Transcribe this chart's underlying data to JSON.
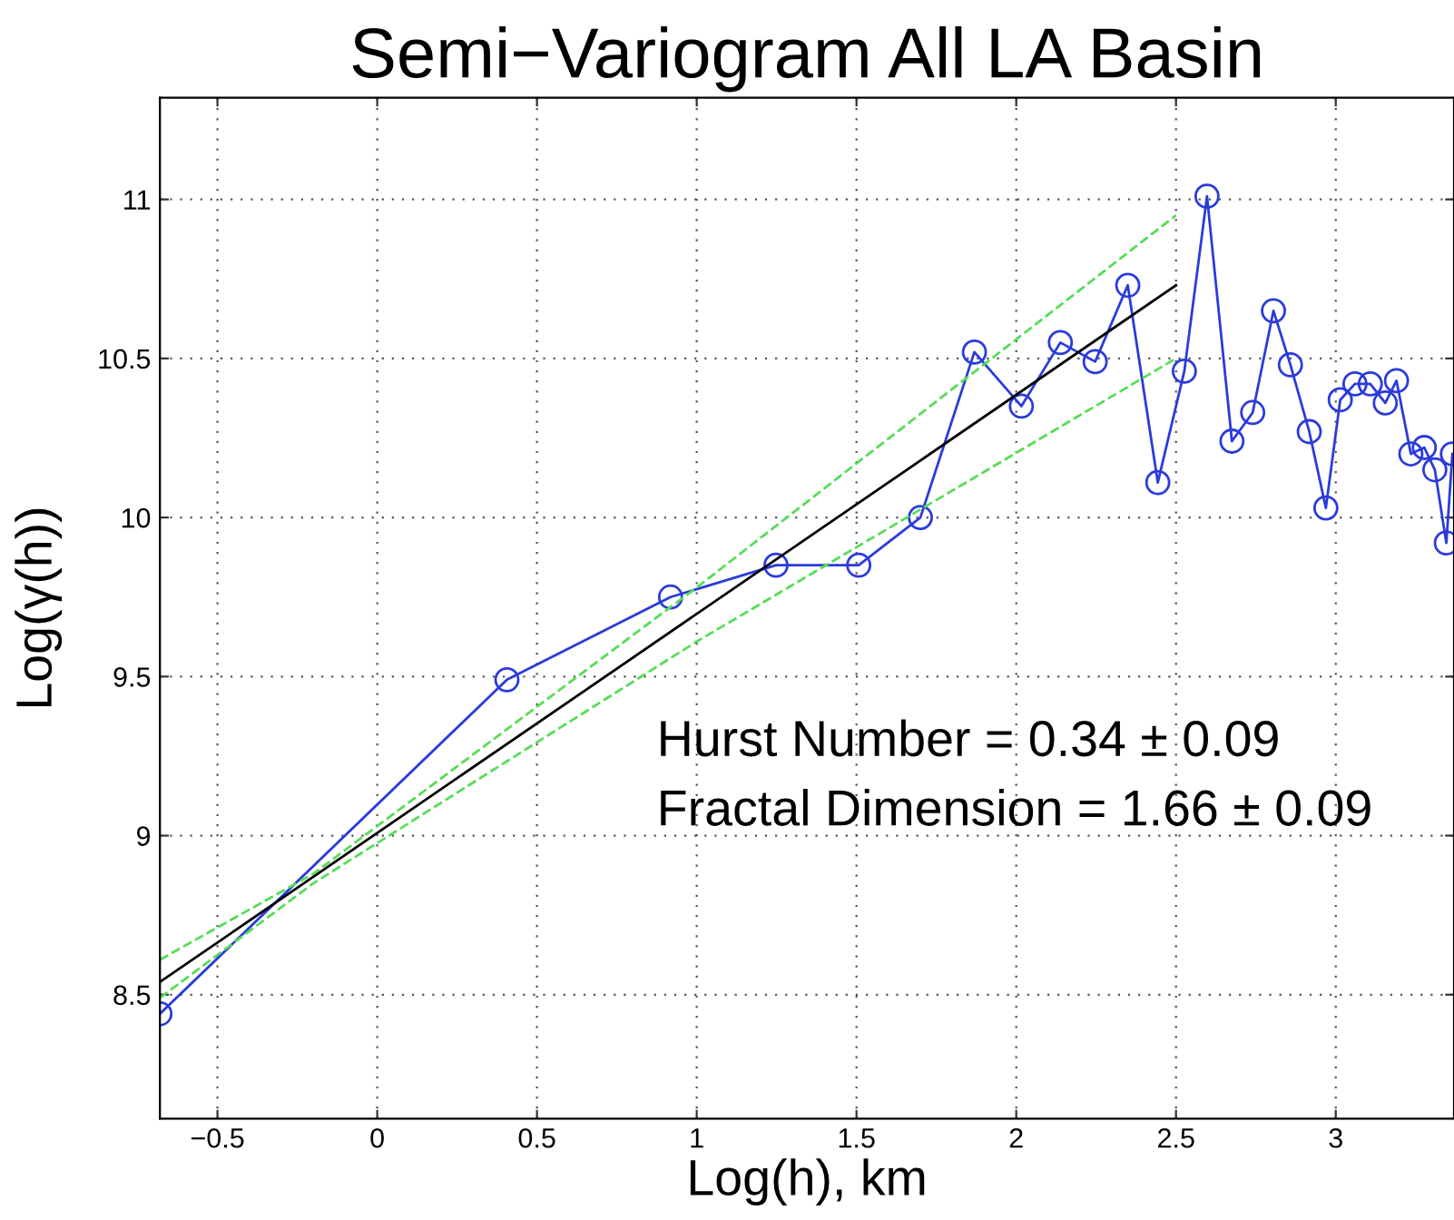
{
  "chart_data": {
    "type": "line",
    "title": "Semi−Variogram All LA Basin",
    "xlabel": "Log(h), km",
    "ylabel": "Log(γ(h))",
    "annotations": [
      "Hurst Number = 0.34 ± 0.09",
      "Fractal Dimension = 1.66 ± 0.09"
    ],
    "xlim": [
      -0.68,
      3.37
    ],
    "ylim": [
      8.11,
      11.32
    ],
    "xticks": [
      -0.5,
      0,
      0.5,
      1,
      1.5,
      2,
      2.5,
      3
    ],
    "yticks": [
      8.5,
      9,
      9.5,
      10,
      10.5,
      11
    ],
    "grid": true,
    "legend": false,
    "series": [
      {
        "color": "#2a3bdc",
        "marker": "circle",
        "line_style": "solid",
        "x": [
          -0.68,
          0.406,
          0.918,
          1.248,
          1.507,
          1.7,
          1.869,
          2.016,
          2.138,
          2.247,
          2.349,
          2.443,
          2.526,
          2.597,
          2.675,
          2.74,
          2.805,
          2.858,
          2.917,
          2.969,
          3.014,
          3.06,
          3.108,
          3.155,
          3.19,
          3.235,
          3.277,
          3.31,
          3.346,
          3.365
        ],
        "values": [
          8.44,
          9.49,
          9.75,
          9.85,
          9.85,
          10.0,
          10.52,
          10.35,
          10.55,
          10.49,
          10.73,
          10.11,
          10.46,
          11.01,
          10.24,
          10.33,
          10.65,
          10.48,
          10.27,
          10.03,
          10.37,
          10.42,
          10.42,
          10.36,
          10.43,
          10.2,
          10.22,
          10.15,
          9.92,
          10.2
        ]
      },
      {
        "color": "#000000",
        "marker": "none",
        "line_style": "solid",
        "x": [
          -0.68,
          2.5
        ],
        "values": [
          8.54,
          10.73
        ]
      },
      {
        "color": "#55dd55",
        "marker": "none",
        "line_style": "dashed",
        "x": [
          -0.68,
          -0.2,
          1,
          2.5
        ],
        "values": [
          8.61,
          8.88,
          9.78,
          10.95
        ]
      },
      {
        "color": "#55dd55",
        "marker": "none",
        "line_style": "dashed",
        "x": [
          -0.68,
          -0.2,
          1,
          2.5
        ],
        "values": [
          8.49,
          8.85,
          9.61,
          10.5
        ]
      }
    ]
  }
}
